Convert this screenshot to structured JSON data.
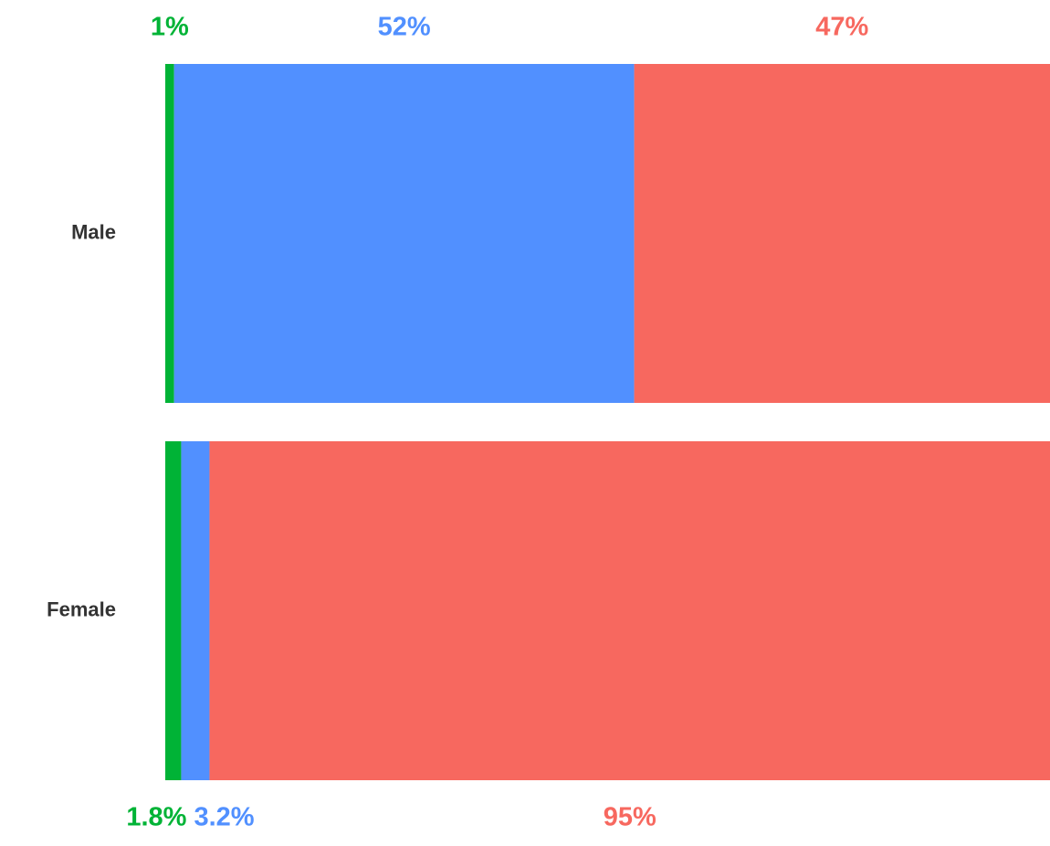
{
  "chart_data": {
    "type": "stacked-bar-horizontal",
    "categories": [
      "Male",
      "Female"
    ],
    "series": [
      {
        "color": "#00b336",
        "values": [
          1,
          1.8
        ],
        "value_labels": [
          "1%",
          "1.8%"
        ]
      },
      {
        "color": "#5190ff",
        "values": [
          52,
          3.2
        ],
        "value_labels": [
          "52%",
          "3.2%"
        ]
      },
      {
        "color": "#f7685f",
        "values": [
          47,
          95
        ],
        "value_labels": [
          "47%",
          "95%"
        ]
      }
    ],
    "xlim": [
      0,
      100
    ]
  }
}
